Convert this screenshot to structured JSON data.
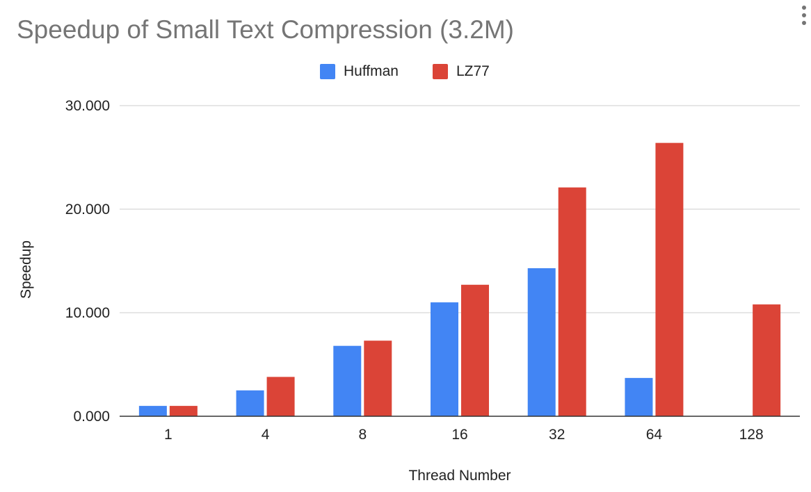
{
  "chart_data": {
    "type": "bar",
    "title": "Speedup of Small Text Compression (3.2M)",
    "xlabel": "Thread Number",
    "ylabel": "Speedup",
    "categories": [
      "1",
      "4",
      "8",
      "16",
      "32",
      "64",
      "128"
    ],
    "series": [
      {
        "name": "Huffman",
        "color": "#4285f4",
        "values": [
          1.0,
          2.5,
          6.8,
          11.0,
          14.3,
          3.7,
          0
        ]
      },
      {
        "name": "LZ77",
        "color": "#db4437",
        "values": [
          1.0,
          3.8,
          7.3,
          12.7,
          22.1,
          26.4,
          10.8
        ]
      }
    ],
    "ylim": [
      0,
      30
    ],
    "yticks": [
      "0.000",
      "10.000",
      "20.000",
      "30.000"
    ],
    "grid": true,
    "legend_position": "top-center"
  }
}
